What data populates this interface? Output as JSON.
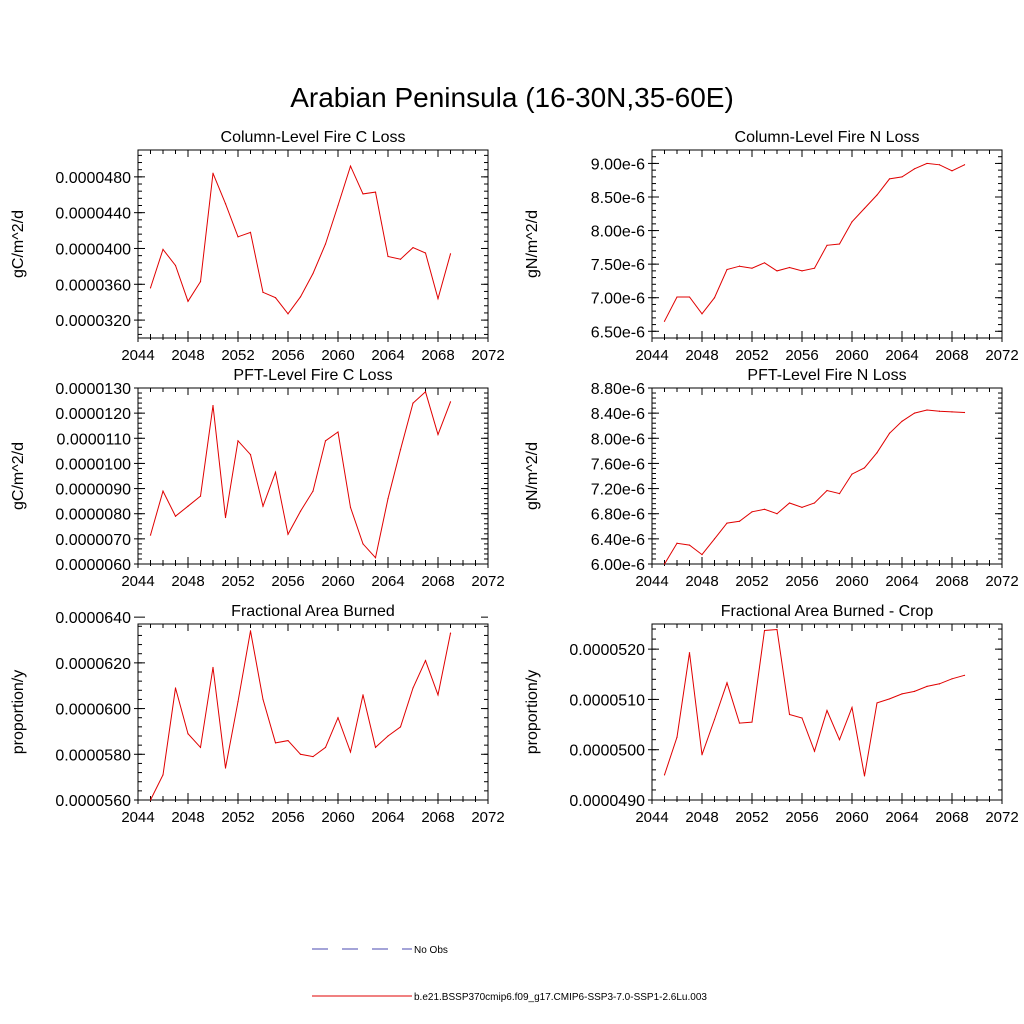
{
  "figure_title": "Arabian Peninsula (16-30N,35-60E)",
  "legend": {
    "items": [
      {
        "label": "No Obs",
        "color": "#4a4ab0",
        "style": "dashed"
      },
      {
        "label": "b.e21.BSSP370cmip6.f09_g17.CMIP6-SSP3-7.0-SSP1-2.6Lu.003",
        "color": "#e00000",
        "style": "solid"
      }
    ]
  },
  "chart_data": [
    {
      "type": "line",
      "title": "Column-Level Fire C Loss",
      "ylabel": "gC/m^2/d",
      "xlim": [
        2044,
        2072
      ],
      "ylim": [
        3e-05,
        5.1e-05
      ],
      "xticks": [
        "2044",
        "2048",
        "2052",
        "2056",
        "2060",
        "2064",
        "2068",
        "2072"
      ],
      "yticks": [
        3.2e-05,
        3.6e-05,
        4e-05,
        4.4e-05,
        4.8e-05
      ],
      "ytick_labels": [
        "0.0000320",
        "0.0000360",
        "0.0000400",
        "0.0000440",
        "0.0000480"
      ],
      "series": [
        {
          "color": "#e00000",
          "x": [
            2045,
            2046,
            2047,
            2048,
            2049,
            2050,
            2051,
            2052,
            2053,
            2054,
            2055,
            2056,
            2057,
            2058,
            2059,
            2060,
            2061,
            2062,
            2063,
            2064,
            2065,
            2066,
            2067,
            2068,
            2069
          ],
          "y": [
            3.56e-05,
            3.99e-05,
            3.81e-05,
            3.41e-05,
            3.63e-05,
            4.84e-05,
            4.5e-05,
            4.13e-05,
            4.18e-05,
            3.51e-05,
            3.45e-05,
            3.27e-05,
            3.46e-05,
            3.72e-05,
            4.05e-05,
            4.48e-05,
            4.92e-05,
            4.61e-05,
            4.63e-05,
            3.91e-05,
            3.88e-05,
            4.01e-05,
            3.95e-05,
            3.44e-05,
            3.94e-05
          ]
        }
      ]
    },
    {
      "type": "line",
      "title": "Column-Level Fire N Loss",
      "ylabel": "gN/m^2/d",
      "xlim": [
        2044,
        2072
      ],
      "ylim": [
        6.4e-06,
        9.2e-06
      ],
      "xticks": [
        "2044",
        "2048",
        "2052",
        "2056",
        "2060",
        "2064",
        "2068",
        "2072"
      ],
      "yticks": [
        6.5e-06,
        7e-06,
        7.5e-06,
        8e-06,
        8.5e-06,
        9e-06
      ],
      "ytick_labels": [
        "6.50e-6",
        "7.00e-6",
        "7.50e-6",
        "8.00e-6",
        "8.50e-6",
        "9.00e-6"
      ],
      "series": [
        {
          "color": "#e00000",
          "x": [
            2045,
            2046,
            2047,
            2048,
            2049,
            2050,
            2051,
            2052,
            2053,
            2054,
            2055,
            2056,
            2057,
            2058,
            2059,
            2060,
            2061,
            2062,
            2063,
            2064,
            2065,
            2066,
            2067,
            2068,
            2069
          ],
          "y": [
            6.65e-06,
            7.01e-06,
            7.01e-06,
            6.76e-06,
            7e-06,
            7.42e-06,
            7.47e-06,
            7.44e-06,
            7.52e-06,
            7.4e-06,
            7.45e-06,
            7.4e-06,
            7.44e-06,
            7.78e-06,
            7.8e-06,
            8.13e-06,
            8.33e-06,
            8.53e-06,
            8.77e-06,
            8.8e-06,
            8.92e-06,
            9e-06,
            8.98e-06,
            8.89e-06,
            8.98e-06
          ]
        }
      ]
    },
    {
      "type": "line",
      "title": "PFT-Level Fire C Loss",
      "ylabel": "gC/m^2/d",
      "xlim": [
        2044,
        2072
      ],
      "ylim": [
        6e-06,
        1.3e-05
      ],
      "xticks": [
        "2044",
        "2048",
        "2052",
        "2056",
        "2060",
        "2064",
        "2068",
        "2072"
      ],
      "yticks": [
        6e-06,
        7e-06,
        8e-06,
        9e-06,
        1e-05,
        1.1e-05,
        1.2e-05,
        1.3e-05
      ],
      "ytick_labels": [
        "0.0000060",
        "0.0000070",
        "0.0000080",
        "0.0000090",
        "0.0000100",
        "0.0000110",
        "0.0000120",
        "0.0000130"
      ],
      "series": [
        {
          "color": "#e00000",
          "x": [
            2045,
            2046,
            2047,
            2048,
            2049,
            2050,
            2051,
            2052,
            2053,
            2054,
            2055,
            2056,
            2057,
            2058,
            2059,
            2060,
            2061,
            2062,
            2063,
            2064,
            2065,
            2066,
            2067,
            2068,
            2069
          ],
          "y": [
            7.15e-06,
            8.9e-06,
            7.9e-06,
            8.3e-06,
            8.7e-06,
            1.23e-05,
            7.85e-06,
            1.09e-05,
            1.035e-05,
            8.3e-06,
            9.65e-06,
            7.18e-06,
            8.1e-06,
            8.9e-06,
            1.09e-05,
            1.125e-05,
            8.25e-06,
            6.8e-06,
            6.25e-06,
            8.6e-06,
            1.055e-05,
            1.24e-05,
            1.285e-05,
            1.115e-05,
            1.245e-05
          ]
        }
      ]
    },
    {
      "type": "line",
      "title": "PFT-Level Fire N Loss",
      "ylabel": "gN/m^2/d",
      "xlim": [
        2044,
        2072
      ],
      "ylim": [
        6e-06,
        8.8e-06
      ],
      "xticks": [
        "2044",
        "2048",
        "2052",
        "2056",
        "2060",
        "2064",
        "2068",
        "2072"
      ],
      "yticks": [
        6e-06,
        6.4e-06,
        6.8e-06,
        7.2e-06,
        7.6e-06,
        8e-06,
        8.4e-06,
        8.8e-06
      ],
      "ytick_labels": [
        "6.00e-6",
        "6.40e-6",
        "6.80e-6",
        "7.20e-6",
        "7.60e-6",
        "8.00e-6",
        "8.40e-6",
        "8.80e-6"
      ],
      "series": [
        {
          "color": "#e00000",
          "x": [
            2045,
            2046,
            2047,
            2048,
            2049,
            2050,
            2051,
            2052,
            2053,
            2054,
            2055,
            2056,
            2057,
            2058,
            2059,
            2060,
            2061,
            2062,
            2063,
            2064,
            2065,
            2066,
            2067,
            2068,
            2069
          ],
          "y": [
            6e-06,
            6.33e-06,
            6.3e-06,
            6.15e-06,
            6.4e-06,
            6.65e-06,
            6.68e-06,
            6.83e-06,
            6.87e-06,
            6.8e-06,
            6.97e-06,
            6.9e-06,
            6.97e-06,
            7.17e-06,
            7.12e-06,
            7.43e-06,
            7.53e-06,
            7.77e-06,
            8.08e-06,
            8.27e-06,
            8.4e-06,
            8.45e-06,
            8.43e-06,
            8.42e-06,
            8.41e-06
          ]
        }
      ]
    },
    {
      "type": "line",
      "title": "Fractional Area Burned",
      "ylabel": "proportion/y",
      "xlim": [
        2044,
        2072
      ],
      "ylim": [
        5.6e-05,
        6.37e-05
      ],
      "xticks": [
        "2044",
        "2048",
        "2052",
        "2056",
        "2060",
        "2064",
        "2068",
        "2072"
      ],
      "yticks": [
        5.6e-05,
        5.8e-05,
        6e-05,
        6.2e-05,
        6.4e-05
      ],
      "ytick_labels": [
        "0.0000560",
        "0.0000580",
        "0.0000600",
        "0.0000620",
        "0.0000640"
      ],
      "series": [
        {
          "color": "#e00000",
          "x": [
            2045,
            2046,
            2047,
            2048,
            2049,
            2050,
            2051,
            2052,
            2053,
            2054,
            2055,
            2056,
            2057,
            2058,
            2059,
            2060,
            2061,
            2062,
            2063,
            2064,
            2065,
            2066,
            2067,
            2068,
            2069
          ],
          "y": [
            5.6e-05,
            5.71e-05,
            6.09e-05,
            5.89e-05,
            5.83e-05,
            6.18e-05,
            5.74e-05,
            6.03e-05,
            6.34e-05,
            6.04e-05,
            5.85e-05,
            5.86e-05,
            5.8e-05,
            5.79e-05,
            5.83e-05,
            5.96e-05,
            5.81e-05,
            6.06e-05,
            5.83e-05,
            5.88e-05,
            5.92e-05,
            6.09e-05,
            6.21e-05,
            6.06e-05,
            6.33e-05
          ]
        }
      ]
    },
    {
      "type": "line",
      "title": "Fractional Area Burned - Crop",
      "ylabel": "proportion/y",
      "xlim": [
        2044,
        2072
      ],
      "ylim": [
        4.9e-05,
        5.25e-05
      ],
      "xticks": [
        "2044",
        "2048",
        "2052",
        "2056",
        "2060",
        "2064",
        "2068",
        "2072"
      ],
      "yticks": [
        4.9e-05,
        5e-05,
        5.1e-05,
        5.2e-05
      ],
      "ytick_labels": [
        "0.0000490",
        "0.0000500",
        "0.0000510",
        "0.0000520"
      ],
      "series": [
        {
          "color": "#e00000",
          "x": [
            2045,
            2046,
            2047,
            2048,
            2049,
            2050,
            2051,
            2052,
            2053,
            2054,
            2055,
            2056,
            2057,
            2058,
            2059,
            2060,
            2061,
            2062,
            2063,
            2064,
            2065,
            2066,
            2067,
            2068,
            2069
          ],
          "y": [
            4.95e-05,
            5.025e-05,
            5.193e-05,
            4.99e-05,
            5.06e-05,
            5.133e-05,
            5.053e-05,
            5.055e-05,
            5.237e-05,
            5.239e-05,
            5.07e-05,
            5.063e-05,
            4.997e-05,
            5.078e-05,
            5.02e-05,
            5.084e-05,
            4.948e-05,
            5.093e-05,
            5.101e-05,
            5.111e-05,
            5.116e-05,
            5.126e-05,
            5.131e-05,
            5.141e-05,
            5.148e-05
          ]
        }
      ]
    }
  ]
}
